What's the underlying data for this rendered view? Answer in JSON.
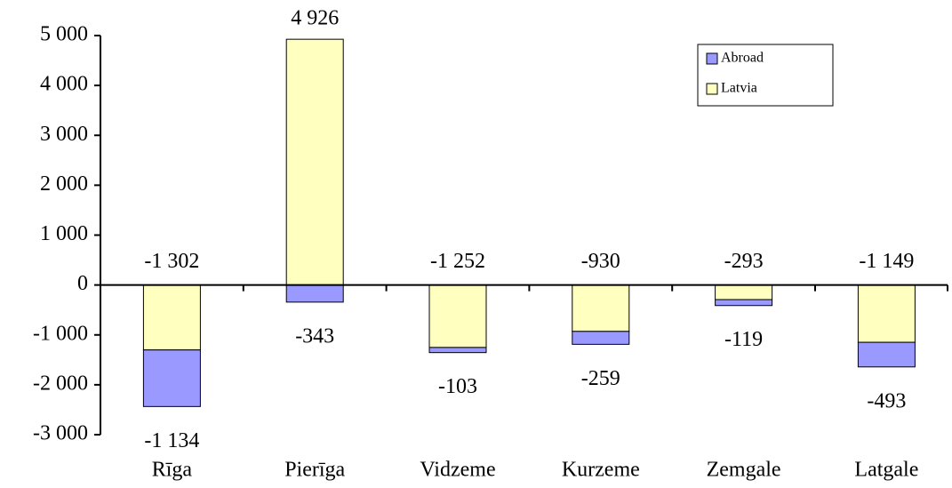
{
  "chart_data": {
    "type": "bar",
    "stacked": true,
    "categories": [
      "Rīga",
      "Pierīga",
      "Vidzeme",
      "Kurzeme",
      "Zemgale",
      "Latgale"
    ],
    "series": [
      {
        "name": "Abroad",
        "color": "#9999ff",
        "values": [
          -1134,
          -343,
          -103,
          -259,
          -119,
          -493
        ],
        "value_labels": [
          "-1 134",
          "-343",
          "-103",
          "-259",
          "-119",
          "-493"
        ]
      },
      {
        "name": "Latvia",
        "color": "#ffffc0",
        "values": [
          -1302,
          4926,
          -1252,
          -930,
          -293,
          -1149
        ],
        "value_labels": [
          "-1 302",
          "4 926",
          "-1 252",
          "-930",
          "-293",
          "-1 149"
        ]
      }
    ],
    "ylim": [
      -3000,
      5000
    ],
    "yticks": [
      {
        "value": -3000,
        "label": "-3 000"
      },
      {
        "value": -2000,
        "label": "-2 000"
      },
      {
        "value": -1000,
        "label": "-1 000"
      },
      0,
      {
        "value": 1000,
        "label": "1 000"
      },
      {
        "value": 2000,
        "label": "2 000"
      },
      {
        "value": 3000,
        "label": "3 000"
      },
      {
        "value": 4000,
        "label": "4 000"
      },
      {
        "value": 5000,
        "label": "5 000"
      }
    ],
    "grid": false,
    "legend": "upper right"
  }
}
